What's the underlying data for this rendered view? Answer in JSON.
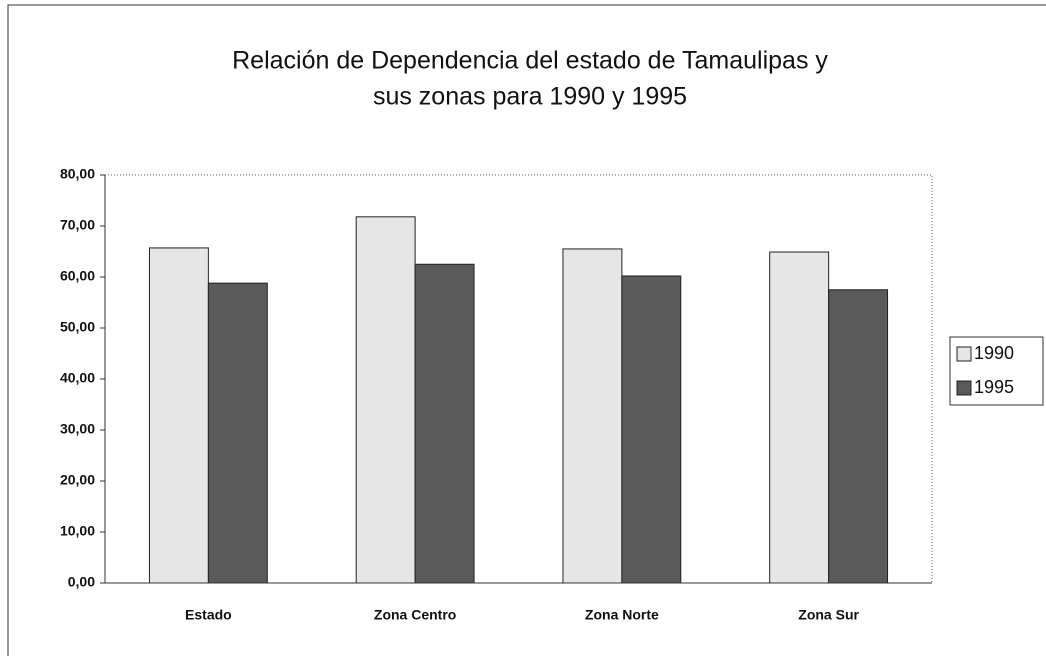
{
  "chart_data": {
    "type": "bar",
    "title": [
      "Relación de Dependencia del estado de Tamaulipas y",
      "sus zonas para  1990  y  1995"
    ],
    "categories": [
      "Estado",
      "Zona Centro",
      "Zona Norte",
      "Zona Sur"
    ],
    "series": [
      {
        "name": "1990",
        "color": "#e6e6e6",
        "values": [
          65.7,
          71.8,
          65.5,
          64.9
        ]
      },
      {
        "name": "1995",
        "color": "#5a5a5a",
        "values": [
          58.8,
          62.5,
          60.2,
          57.5
        ]
      }
    ],
    "ylim": [
      0,
      80
    ],
    "yticks": [
      {
        "value": 0,
        "label": "0,00"
      },
      {
        "value": 10,
        "label": "10,00"
      },
      {
        "value": 20,
        "label": "20,00"
      },
      {
        "value": 30,
        "label": "30,00"
      },
      {
        "value": 40,
        "label": "40,00"
      },
      {
        "value": 50,
        "label": "50,00"
      },
      {
        "value": 60,
        "label": "60,00"
      },
      {
        "value": 70,
        "label": "70,00"
      },
      {
        "value": 80,
        "label": "80,00"
      }
    ],
    "legend": "right"
  }
}
